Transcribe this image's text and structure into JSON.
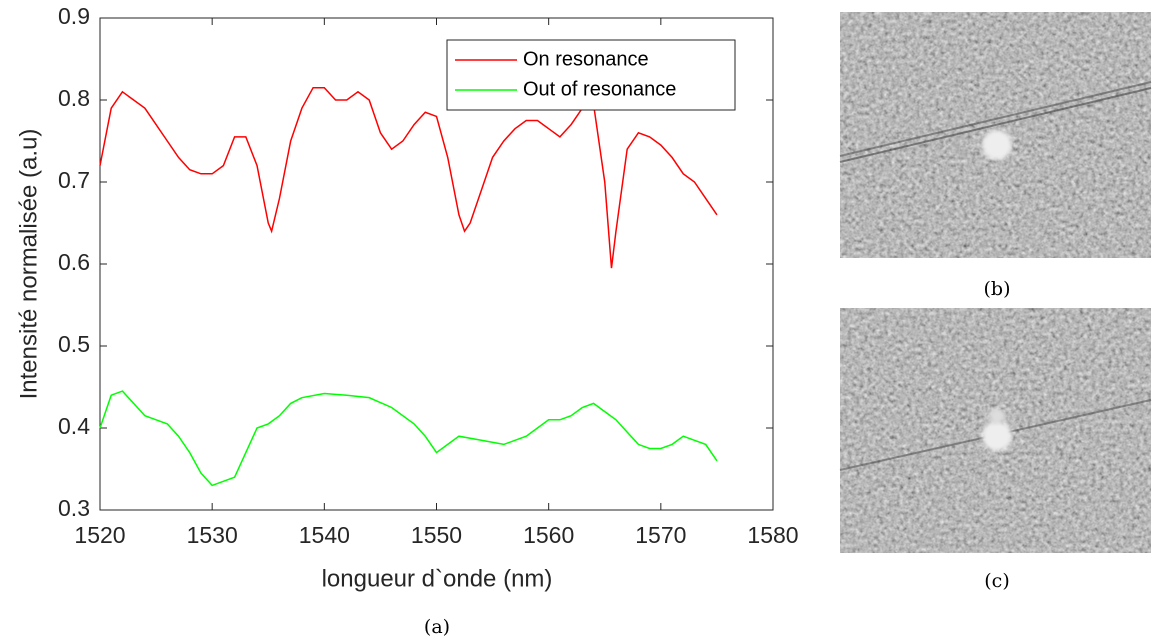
{
  "chart_data": {
    "type": "line",
    "xlabel": "longueur d`onde (nm)",
    "ylabel": "Intensité normalisée (a.u)",
    "xlim": [
      1520,
      1580
    ],
    "xticks": [
      1520,
      1530,
      1540,
      1550,
      1560,
      1570,
      1580
    ],
    "ylim": [
      0.3,
      0.9
    ],
    "yticks": [
      0.3,
      0.4,
      0.5,
      0.6,
      0.7,
      0.8,
      0.9
    ],
    "legend": "northeast",
    "grid": false,
    "series": [
      {
        "name": "On resonance",
        "color": "#ff0000",
        "x": [
          1520,
          1521,
          1522,
          1523,
          1524,
          1525,
          1526,
          1527,
          1528,
          1529,
          1530,
          1531,
          1532,
          1533,
          1534,
          1535,
          1535.3,
          1536,
          1537,
          1538,
          1539,
          1540,
          1541,
          1542,
          1543,
          1544,
          1545,
          1546,
          1547,
          1548,
          1549,
          1550,
          1551,
          1552,
          1552.5,
          1553,
          1554,
          1555,
          1556,
          1557,
          1558,
          1559,
          1560,
          1561,
          1562,
          1563,
          1564,
          1565,
          1565.6,
          1566,
          1567,
          1568,
          1569,
          1570,
          1571,
          1572,
          1573,
          1574,
          1575
        ],
        "values": [
          0.72,
          0.79,
          0.81,
          0.8,
          0.79,
          0.77,
          0.75,
          0.73,
          0.715,
          0.71,
          0.71,
          0.72,
          0.755,
          0.755,
          0.72,
          0.65,
          0.64,
          0.68,
          0.75,
          0.79,
          0.815,
          0.815,
          0.8,
          0.8,
          0.81,
          0.8,
          0.76,
          0.74,
          0.75,
          0.77,
          0.785,
          0.78,
          0.73,
          0.66,
          0.64,
          0.65,
          0.69,
          0.73,
          0.75,
          0.765,
          0.775,
          0.775,
          0.765,
          0.755,
          0.77,
          0.79,
          0.795,
          0.7,
          0.595,
          0.64,
          0.74,
          0.76,
          0.755,
          0.745,
          0.73,
          0.71,
          0.7,
          0.68,
          0.66
        ]
      },
      {
        "name": "Out of resonance",
        "color": "#00ff00",
        "x": [
          1520,
          1521,
          1522,
          1523,
          1524,
          1525,
          1526,
          1527,
          1528,
          1529,
          1530,
          1531,
          1532,
          1533,
          1534,
          1535,
          1536,
          1537,
          1538,
          1540,
          1542,
          1544,
          1546,
          1548,
          1549,
          1550,
          1551,
          1552,
          1554,
          1556,
          1558,
          1559,
          1560,
          1561,
          1562,
          1563,
          1564,
          1565,
          1566,
          1567,
          1568,
          1569,
          1570,
          1571,
          1572,
          1573,
          1574,
          1575
        ],
        "values": [
          0.4,
          0.44,
          0.445,
          0.43,
          0.415,
          0.41,
          0.405,
          0.39,
          0.37,
          0.345,
          0.33,
          0.335,
          0.34,
          0.37,
          0.4,
          0.405,
          0.415,
          0.43,
          0.437,
          0.442,
          0.44,
          0.437,
          0.425,
          0.405,
          0.39,
          0.37,
          0.38,
          0.39,
          0.385,
          0.38,
          0.39,
          0.4,
          0.41,
          0.41,
          0.415,
          0.425,
          0.43,
          0.42,
          0.41,
          0.395,
          0.38,
          0.375,
          0.375,
          0.38,
          0.39,
          0.385,
          0.38,
          0.36
        ]
      }
    ]
  },
  "captions": [
    "(a)",
    "(b)",
    "(c)"
  ]
}
